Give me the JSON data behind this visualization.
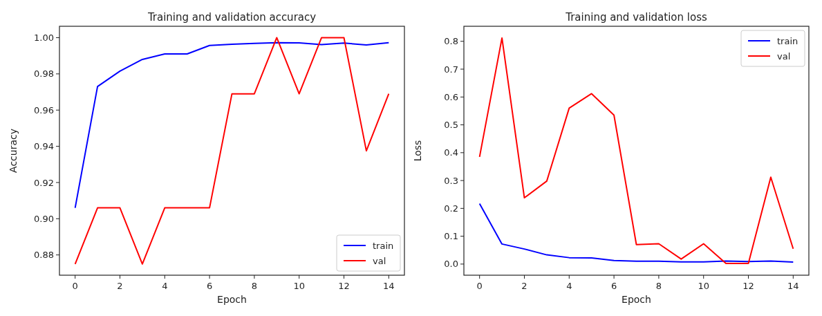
{
  "chart_data": [
    {
      "type": "line",
      "title": "Training and validation accuracy",
      "xlabel": "Epoch",
      "ylabel": "Accuracy",
      "x": [
        0,
        1,
        2,
        3,
        4,
        5,
        6,
        7,
        8,
        9,
        10,
        11,
        12,
        13,
        14
      ],
      "series": [
        {
          "name": "train",
          "color": "#0000ff",
          "values": [
            0.906,
            0.973,
            0.9815,
            0.988,
            0.991,
            0.991,
            0.9957,
            0.9964,
            0.9968,
            0.9972,
            0.9971,
            0.9962,
            0.997,
            0.996,
            0.9972
          ]
        },
        {
          "name": "val",
          "color": "#ff0000",
          "values": [
            0.875,
            0.906,
            0.906,
            0.875,
            0.906,
            0.906,
            0.906,
            0.969,
            0.969,
            1.0,
            0.969,
            1.0,
            1.0,
            0.9375,
            0.969
          ]
        }
      ],
      "xlim": [
        -0.7,
        14.7
      ],
      "ylim": [
        0.8688,
        1.0063
      ],
      "xticks": [
        0,
        2,
        4,
        6,
        8,
        10,
        12,
        14
      ],
      "yticks": [
        0.88,
        {
          "value": 0.9,
          "label": "0.90"
        },
        0.92,
        0.94,
        0.96,
        0.98,
        {
          "value": 1,
          "label": "1.00"
        }
      ],
      "legend": "bottom right"
    },
    {
      "type": "line",
      "title": "Training and validation loss",
      "xlabel": "Epoch",
      "ylabel": "Loss",
      "x": [
        0,
        1,
        2,
        3,
        4,
        5,
        6,
        7,
        8,
        9,
        10,
        11,
        12,
        13,
        14
      ],
      "series": [
        {
          "name": "train",
          "color": "#0000ff",
          "values": [
            0.217,
            0.072,
            0.054,
            0.033,
            0.023,
            0.022,
            0.013,
            0.01,
            0.01,
            0.008,
            0.008,
            0.011,
            0.009,
            0.011,
            0.007
          ]
        },
        {
          "name": "val",
          "color": "#ff0000",
          "values": [
            0.385,
            0.812,
            0.238,
            0.298,
            0.56,
            0.612,
            0.535,
            0.07,
            0.073,
            0.018,
            0.073,
            0.002,
            0.002,
            0.312,
            0.055
          ]
        }
      ],
      "xlim": [
        -0.7,
        14.7
      ],
      "ylim": [
        -0.04,
        0.854
      ],
      "xticks": [
        0,
        2,
        4,
        6,
        8,
        10,
        12,
        14
      ],
      "yticks": [
        {
          "value": 0,
          "label": "0.0"
        },
        0.1,
        0.2,
        0.3,
        0.4,
        0.5,
        0.6,
        0.7,
        0.8
      ],
      "legend": "top right"
    }
  ]
}
